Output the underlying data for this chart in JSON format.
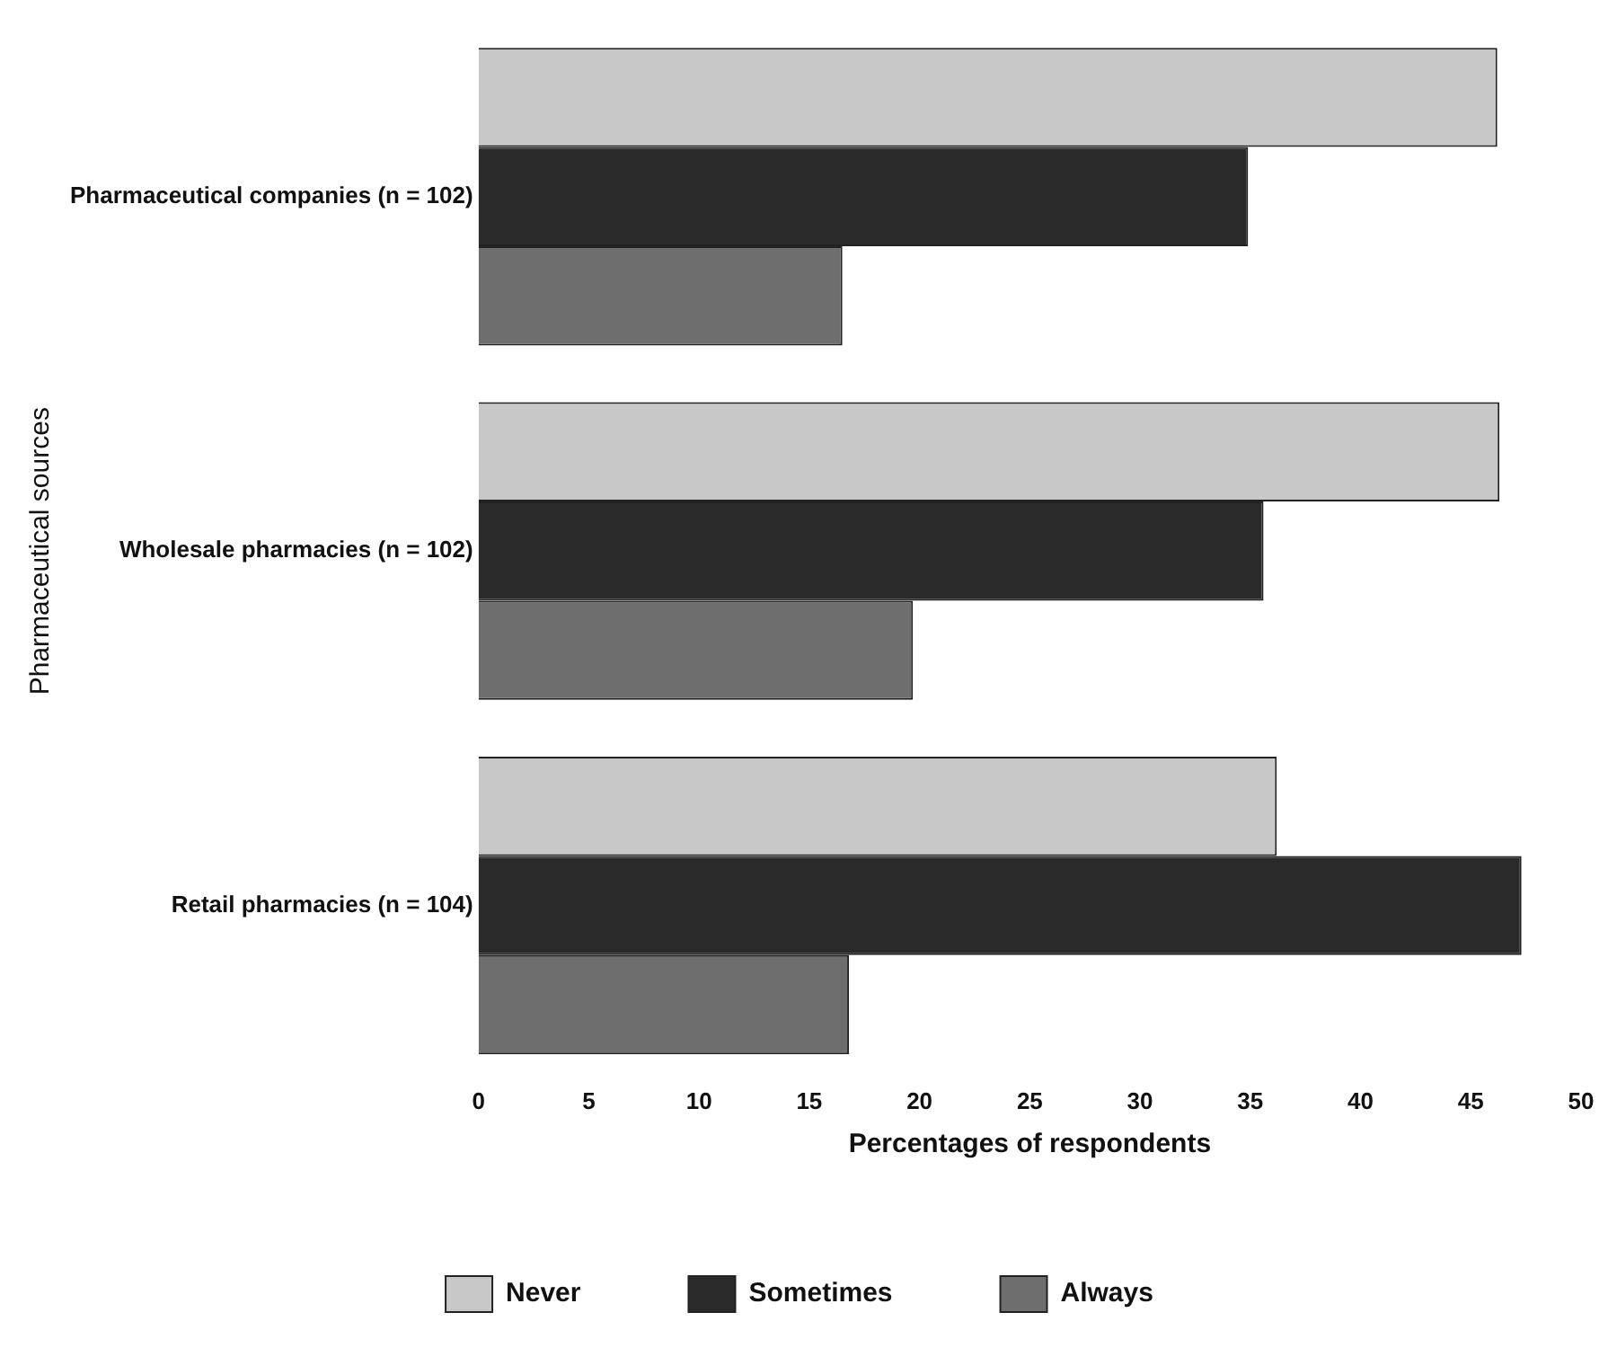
{
  "chart_data": {
    "type": "bar",
    "orientation": "horizontal",
    "xlabel": "Percentages of respondents",
    "ylabel": "Pharmaceutical sources",
    "categories": [
      "Pharmaceutical companies (n = 102)",
      "Wholesale pharmacies (n = 102)",
      "Retail pharmacies (n = 104)"
    ],
    "series": [
      {
        "name": "Never",
        "color": "#c8c8c8",
        "values": [
          46.2,
          46.3,
          36.2
        ]
      },
      {
        "name": "Sometimes",
        "color": "#2a2a2a",
        "values": [
          34.9,
          35.6,
          47.3
        ]
      },
      {
        "name": "Always",
        "color": "#6e6e6e",
        "values": [
          16.5,
          19.7,
          16.8
        ]
      }
    ],
    "xlim": [
      0,
      50
    ],
    "xticks": [
      0,
      5,
      10,
      15,
      20,
      25,
      30,
      35,
      40,
      45,
      50
    ],
    "grid": false,
    "legend": "bottom"
  }
}
